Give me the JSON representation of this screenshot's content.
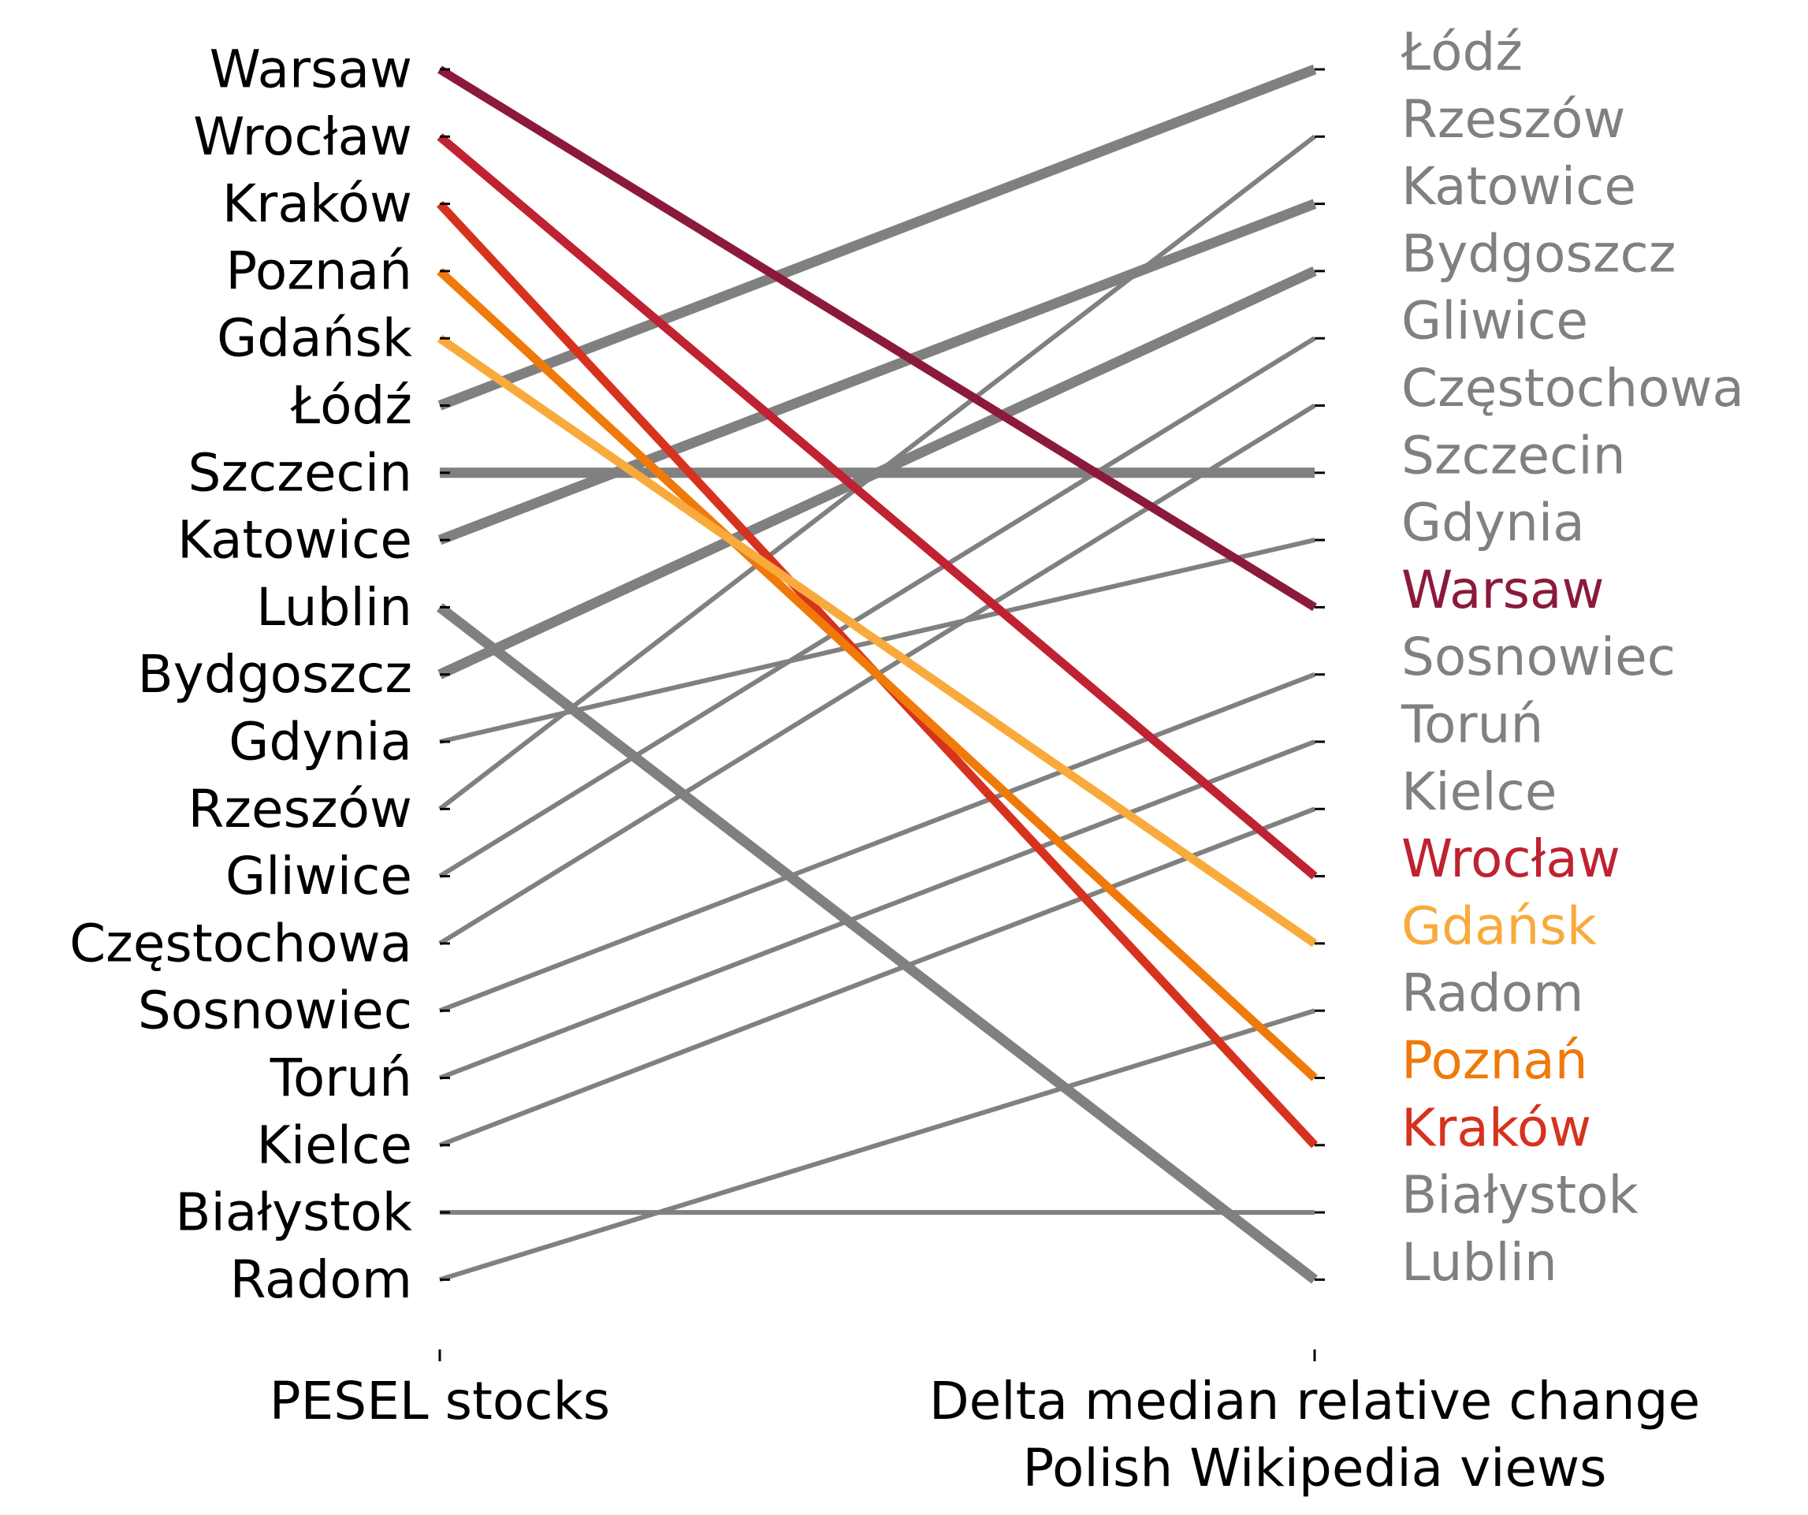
{
  "chart_data": {
    "type": "slope",
    "left_axis": {
      "label": "PESEL stocks"
    },
    "right_axis": {
      "label_lines": [
        "Delta median relative change",
        "Polish Wikipedia views"
      ]
    },
    "left_order": [
      "Warsaw",
      "Wrocław",
      "Kraków",
      "Poznań",
      "Gdańsk",
      "Łódź",
      "Szczecin",
      "Katowice",
      "Lublin",
      "Bydgoszcz",
      "Gdynia",
      "Rzeszów",
      "Gliwice",
      "Częstochowa",
      "Sosnowiec",
      "Toruń",
      "Kielce",
      "Białystok",
      "Radom"
    ],
    "right_order": [
      "Łódź",
      "Rzeszów",
      "Katowice",
      "Bydgoszcz",
      "Gliwice",
      "Częstochowa",
      "Szczecin",
      "Gdynia",
      "Warsaw",
      "Sosnowiec",
      "Toruń",
      "Kielce",
      "Wrocław",
      "Gdańsk",
      "Radom",
      "Poznań",
      "Kraków",
      "Białystok",
      "Lublin"
    ],
    "highlight_colors": {
      "Warsaw": "#8b1a3a",
      "Wrocław": "#bf2230",
      "Kraków": "#d6321e",
      "Poznań": "#ef7a0a",
      "Gdańsk": "#f8ab3c"
    },
    "default_color": "#808080",
    "thick_lines": [
      "Łódź",
      "Szczecin",
      "Katowice",
      "Lublin",
      "Bydgoszcz"
    ]
  }
}
